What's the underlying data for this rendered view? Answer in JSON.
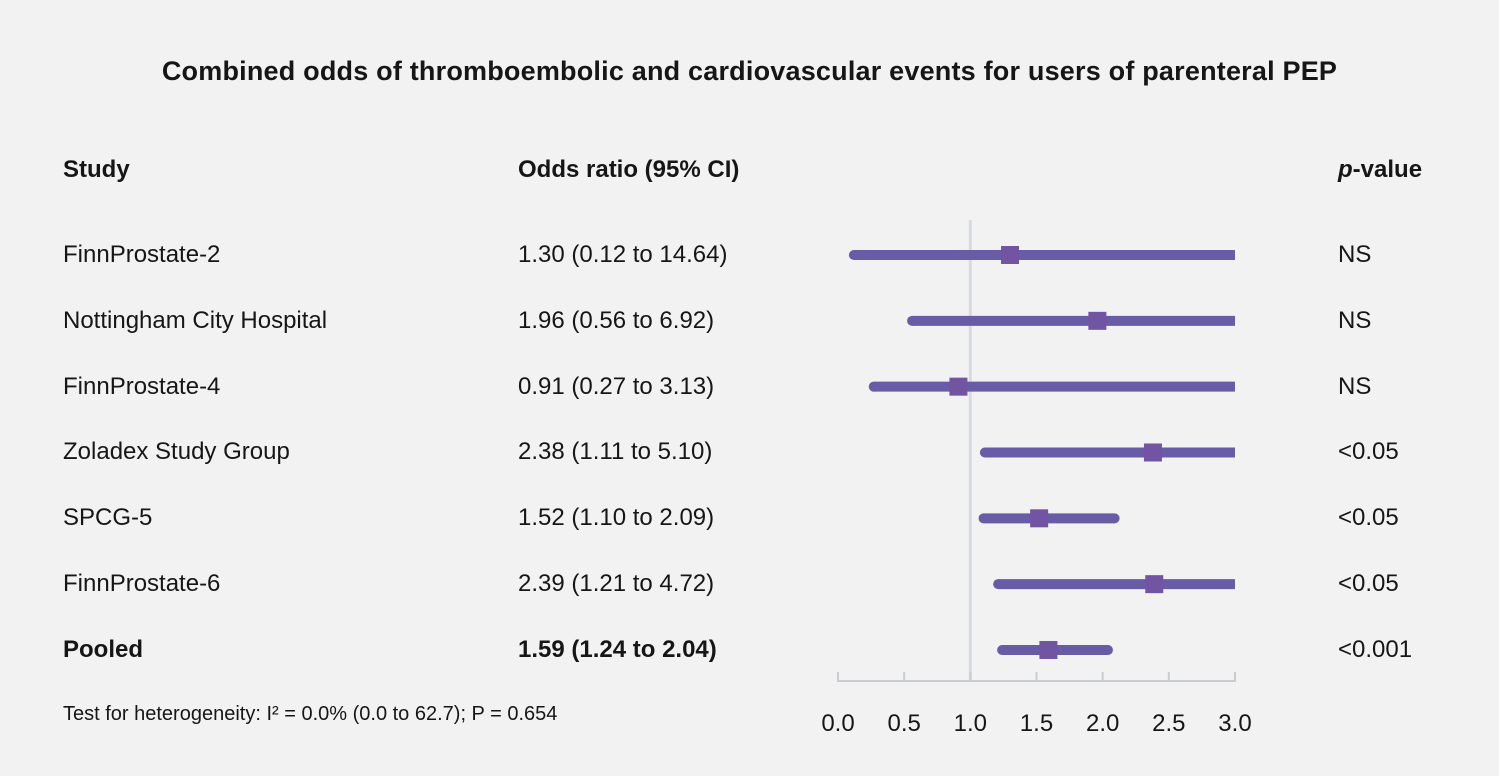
{
  "title": "Combined odds of thromboembolic and cardiovascular events for users of parenteral PEP",
  "columns": {
    "study": "Study",
    "odds_ratio": "Odds ratio (95% CI)",
    "p_value_italic": "p",
    "p_value_rest": "-value"
  },
  "footnote": "Test for heterogeneity: I² = 0.0% (0.0 to 62.7); P = 0.654",
  "colors": {
    "background": "#f2f2f2",
    "text": "#161616",
    "ci_line": "#685CA7",
    "marker": "#7154A2",
    "reference_line": "#d7dbe1",
    "axis_line": "#c9cdd2"
  },
  "chart_data": {
    "type": "forest",
    "x_range": [
      0.0,
      3.0
    ],
    "tick_values": [
      0.0,
      0.5,
      1.0,
      1.5,
      2.0,
      2.5,
      3.0
    ],
    "tick_labels": [
      "0.0",
      "0.5",
      "1.0",
      "1.5",
      "2.0",
      "2.5",
      "3.0"
    ],
    "reference_value": 1.0,
    "grid": false,
    "studies": [
      {
        "name": "FinnProstate-2",
        "or": 1.3,
        "ci_low": 0.12,
        "ci_high": 14.64,
        "or_label": "1.30 (0.12 to 14.64)",
        "p": "NS",
        "bold": false
      },
      {
        "name": "Nottingham City Hospital",
        "or": 1.96,
        "ci_low": 0.56,
        "ci_high": 6.92,
        "or_label": "1.96 (0.56 to 6.92)",
        "p": "NS",
        "bold": false
      },
      {
        "name": "FinnProstate-4",
        "or": 0.91,
        "ci_low": 0.27,
        "ci_high": 3.13,
        "or_label": "0.91 (0.27 to 3.13)",
        "p": "NS",
        "bold": false
      },
      {
        "name": "Zoladex Study Group",
        "or": 2.38,
        "ci_low": 1.11,
        "ci_high": 5.1,
        "or_label": "2.38 (1.11 to 5.10)",
        "p": "<0.05",
        "bold": false
      },
      {
        "name": "SPCG-5",
        "or": 1.52,
        "ci_low": 1.1,
        "ci_high": 2.09,
        "or_label": "1.52 (1.10 to 2.09)",
        "p": "<0.05",
        "bold": false
      },
      {
        "name": "FinnProstate-6",
        "or": 2.39,
        "ci_low": 1.21,
        "ci_high": 4.72,
        "or_label": "2.39 (1.21 to 4.72)",
        "p": "<0.05",
        "bold": false
      },
      {
        "name": "Pooled",
        "or": 1.59,
        "ci_low": 1.24,
        "ci_high": 2.04,
        "or_label": "1.59 (1.24 to 2.04)",
        "p": "<0.001",
        "bold": true
      }
    ]
  }
}
